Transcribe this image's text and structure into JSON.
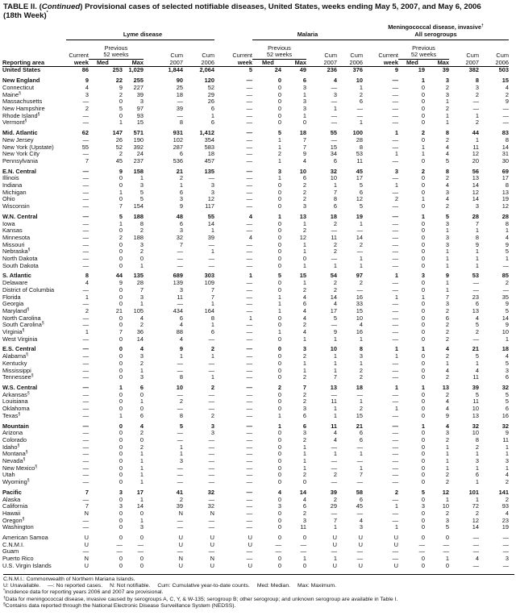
{
  "title": {
    "prefix": "TABLE II. (",
    "continued": "Continued",
    "text": ") Provisional cases of selected notifiable diseases, United States, weeks ending May 5, 2007, and May 6, 2006",
    "line2": "(18th Week)",
    "note": "*"
  },
  "headers": {
    "groups": [
      "Lyme disease",
      "Malaria"
    ],
    "men_line1": "Meningococcal disease, invasive",
    "men_note": "†",
    "men_line2": "All serogroups",
    "reporting_area": "Reporting area",
    "current": "Current",
    "week": "week",
    "previous": "Previous",
    "weeks52": "52 weeks",
    "med": "Med",
    "max": "Max",
    "cum": "Cum",
    "y2007": "2007",
    "y2006": "2006"
  },
  "rows": [
    {
      "name": "United States",
      "bold": true,
      "grp": false,
      "v": [
        "86",
        "253",
        "1,029",
        "1,844",
        "2,064",
        "5",
        "24",
        "49",
        "236",
        "376",
        "9",
        "19",
        "39",
        "382",
        "503"
      ]
    },
    {
      "name": "New England",
      "bold": true,
      "grp": true,
      "v": [
        "9",
        "22",
        "255",
        "90",
        "120",
        "—",
        "0",
        "6",
        "4",
        "10",
        "—",
        "1",
        "3",
        "8",
        "15"
      ]
    },
    {
      "name": "Connecticut",
      "v": [
        "4",
        "9",
        "227",
        "25",
        "52",
        "—",
        "0",
        "3",
        "—",
        "1",
        "—",
        "0",
        "2",
        "3",
        "4"
      ]
    },
    {
      "name": "Maine",
      "note": "§",
      "v": [
        "3",
        "2",
        "39",
        "18",
        "29",
        "—",
        "0",
        "1",
        "3",
        "2",
        "—",
        "0",
        "3",
        "2",
        "2"
      ]
    },
    {
      "name": "Massachusetts",
      "v": [
        "—",
        "0",
        "3",
        "—",
        "26",
        "—",
        "0",
        "3",
        "—",
        "6",
        "—",
        "0",
        "1",
        "—",
        "9"
      ]
    },
    {
      "name": "New Hampshire",
      "v": [
        "2",
        "5",
        "97",
        "39",
        "6",
        "—",
        "0",
        "3",
        "1",
        "—",
        "—",
        "0",
        "2",
        "—",
        "—"
      ]
    },
    {
      "name": "Rhode Island",
      "note": "§",
      "v": [
        "—",
        "0",
        "93",
        "—",
        "1",
        "—",
        "0",
        "1",
        "—",
        "—",
        "—",
        "0",
        "1",
        "1",
        "—"
      ]
    },
    {
      "name": "Vermont",
      "note": "§",
      "v": [
        "—",
        "1",
        "15",
        "8",
        "6",
        "—",
        "0",
        "0",
        "—",
        "1",
        "—",
        "0",
        "1",
        "2",
        "—"
      ]
    },
    {
      "name": "Mid. Atlantic",
      "bold": true,
      "grp": true,
      "v": [
        "62",
        "147",
        "571",
        "931",
        "1,412",
        "—",
        "5",
        "18",
        "55",
        "100",
        "1",
        "2",
        "8",
        "44",
        "83"
      ]
    },
    {
      "name": "New Jersey",
      "v": [
        "—",
        "26",
        "190",
        "102",
        "354",
        "—",
        "1",
        "7",
        "—",
        "28",
        "—",
        "0",
        "2",
        "1",
        "8"
      ]
    },
    {
      "name": "New York (Upstate)",
      "v": [
        "55",
        "52",
        "392",
        "287",
        "583",
        "—",
        "1",
        "7",
        "15",
        "8",
        "—",
        "1",
        "4",
        "11",
        "14"
      ]
    },
    {
      "name": "New York City",
      "v": [
        "—",
        "2",
        "24",
        "6",
        "18",
        "—",
        "2",
        "9",
        "34",
        "53",
        "1",
        "1",
        "4",
        "12",
        "31"
      ]
    },
    {
      "name": "Pennsylvania",
      "v": [
        "7",
        "45",
        "237",
        "536",
        "457",
        "—",
        "1",
        "4",
        "6",
        "11",
        "—",
        "0",
        "5",
        "20",
        "30"
      ]
    },
    {
      "name": "E.N. Central",
      "bold": true,
      "grp": true,
      "v": [
        "—",
        "9",
        "158",
        "21",
        "135",
        "—",
        "3",
        "10",
        "32",
        "45",
        "3",
        "2",
        "8",
        "56",
        "69"
      ]
    },
    {
      "name": "Illinois",
      "v": [
        "—",
        "0",
        "1",
        "2",
        "—",
        "—",
        "1",
        "6",
        "10",
        "17",
        "—",
        "0",
        "2",
        "13",
        "17"
      ]
    },
    {
      "name": "Indiana",
      "v": [
        "—",
        "0",
        "3",
        "1",
        "3",
        "—",
        "0",
        "2",
        "1",
        "5",
        "1",
        "0",
        "4",
        "14",
        "8"
      ]
    },
    {
      "name": "Michigan",
      "v": [
        "—",
        "1",
        "5",
        "6",
        "3",
        "—",
        "0",
        "2",
        "7",
        "6",
        "—",
        "0",
        "3",
        "12",
        "13"
      ]
    },
    {
      "name": "Ohio",
      "v": [
        "—",
        "0",
        "5",
        "3",
        "12",
        "—",
        "0",
        "2",
        "8",
        "12",
        "2",
        "1",
        "4",
        "14",
        "19"
      ]
    },
    {
      "name": "Wisconsin",
      "v": [
        "—",
        "7",
        "154",
        "9",
        "117",
        "—",
        "0",
        "3",
        "6",
        "5",
        "—",
        "0",
        "2",
        "3",
        "12"
      ]
    },
    {
      "name": "W.N. Central",
      "bold": true,
      "grp": true,
      "v": [
        "—",
        "5",
        "188",
        "48",
        "55",
        "4",
        "1",
        "13",
        "18",
        "19",
        "—",
        "1",
        "5",
        "28",
        "28"
      ]
    },
    {
      "name": "Iowa",
      "v": [
        "—",
        "1",
        "8",
        "6",
        "14",
        "—",
        "0",
        "1",
        "2",
        "1",
        "—",
        "0",
        "3",
        "7",
        "8"
      ]
    },
    {
      "name": "Kansas",
      "v": [
        "—",
        "0",
        "2",
        "3",
        "1",
        "—",
        "0",
        "2",
        "—",
        "—",
        "—",
        "0",
        "1",
        "1",
        "1"
      ]
    },
    {
      "name": "Minnesota",
      "v": [
        "—",
        "2",
        "188",
        "32",
        "39",
        "4",
        "0",
        "12",
        "11",
        "14",
        "—",
        "0",
        "3",
        "8",
        "4"
      ]
    },
    {
      "name": "Missouri",
      "v": [
        "—",
        "0",
        "3",
        "7",
        "—",
        "—",
        "0",
        "1",
        "2",
        "2",
        "—",
        "0",
        "3",
        "9",
        "9"
      ]
    },
    {
      "name": "Nebraska",
      "note": "§",
      "v": [
        "—",
        "0",
        "2",
        "—",
        "1",
        "—",
        "0",
        "1",
        "2",
        "—",
        "—",
        "0",
        "1",
        "1",
        "5"
      ]
    },
    {
      "name": "North Dakota",
      "v": [
        "—",
        "0",
        "0",
        "—",
        "—",
        "—",
        "0",
        "0",
        "—",
        "1",
        "—",
        "0",
        "1",
        "1",
        "1"
      ]
    },
    {
      "name": "South Dakota",
      "v": [
        "—",
        "0",
        "1",
        "—",
        "—",
        "—",
        "0",
        "1",
        "1",
        "1",
        "—",
        "0",
        "1",
        "1",
        "—"
      ]
    },
    {
      "name": "S. Atlantic",
      "bold": true,
      "grp": true,
      "v": [
        "8",
        "44",
        "135",
        "689",
        "303",
        "1",
        "5",
        "15",
        "54",
        "97",
        "1",
        "3",
        "9",
        "53",
        "85"
      ]
    },
    {
      "name": "Delaware",
      "v": [
        "4",
        "9",
        "28",
        "139",
        "109",
        "—",
        "0",
        "1",
        "2",
        "2",
        "—",
        "0",
        "1",
        "—",
        "2"
      ]
    },
    {
      "name": "District of Columbia",
      "v": [
        "—",
        "0",
        "7",
        "3",
        "7",
        "—",
        "0",
        "2",
        "2",
        "—",
        "—",
        "0",
        "1",
        "—",
        "—"
      ]
    },
    {
      "name": "Florida",
      "v": [
        "1",
        "0",
        "3",
        "11",
        "7",
        "—",
        "1",
        "4",
        "14",
        "16",
        "1",
        "1",
        "7",
        "23",
        "35"
      ]
    },
    {
      "name": "Georgia",
      "v": [
        "—",
        "0",
        "1",
        "—",
        "1",
        "—",
        "1",
        "6",
        "4",
        "33",
        "—",
        "0",
        "3",
        "6",
        "9"
      ]
    },
    {
      "name": "Maryland",
      "note": "§",
      "v": [
        "2",
        "21",
        "105",
        "434",
        "164",
        "—",
        "1",
        "4",
        "17",
        "15",
        "—",
        "0",
        "2",
        "13",
        "5"
      ]
    },
    {
      "name": "North Carolina",
      "v": [
        "—",
        "0",
        "4",
        "6",
        "8",
        "1",
        "0",
        "4",
        "5",
        "10",
        "—",
        "0",
        "6",
        "4",
        "14"
      ]
    },
    {
      "name": "South Carolina",
      "note": "§",
      "v": [
        "—",
        "0",
        "2",
        "4",
        "1",
        "—",
        "0",
        "2",
        "—",
        "4",
        "—",
        "0",
        "2",
        "5",
        "9"
      ]
    },
    {
      "name": "Virginia",
      "note": "§",
      "v": [
        "1",
        "7",
        "36",
        "88",
        "6",
        "—",
        "1",
        "4",
        "9",
        "16",
        "—",
        "0",
        "2",
        "2",
        "10"
      ]
    },
    {
      "name": "West Virginia",
      "v": [
        "—",
        "0",
        "14",
        "4",
        "—",
        "—",
        "0",
        "1",
        "1",
        "1",
        "—",
        "0",
        "2",
        "—",
        "1"
      ]
    },
    {
      "name": "E.S. Central",
      "bold": true,
      "grp": true,
      "v": [
        "—",
        "0",
        "4",
        "9",
        "2",
        "—",
        "0",
        "3",
        "10",
        "8",
        "1",
        "1",
        "4",
        "21",
        "18"
      ]
    },
    {
      "name": "Alabama",
      "note": "§",
      "v": [
        "—",
        "0",
        "3",
        "1",
        "1",
        "—",
        "0",
        "2",
        "1",
        "3",
        "1",
        "0",
        "2",
        "5",
        "4"
      ]
    },
    {
      "name": "Kentucky",
      "v": [
        "—",
        "0",
        "2",
        "—",
        "—",
        "—",
        "0",
        "1",
        "1",
        "1",
        "—",
        "0",
        "1",
        "1",
        "5"
      ]
    },
    {
      "name": "Mississippi",
      "v": [
        "—",
        "0",
        "1",
        "—",
        "—",
        "—",
        "0",
        "1",
        "1",
        "2",
        "—",
        "0",
        "4",
        "4",
        "3"
      ]
    },
    {
      "name": "Tennessee",
      "note": "§",
      "v": [
        "—",
        "0",
        "3",
        "8",
        "1",
        "—",
        "0",
        "2",
        "7",
        "2",
        "—",
        "0",
        "2",
        "11",
        "6"
      ]
    },
    {
      "name": "W.S. Central",
      "bold": true,
      "grp": true,
      "v": [
        "—",
        "1",
        "6",
        "10",
        "2",
        "—",
        "2",
        "7",
        "13",
        "18",
        "1",
        "1",
        "13",
        "39",
        "32"
      ]
    },
    {
      "name": "Arkansas",
      "note": "§",
      "v": [
        "—",
        "0",
        "0",
        "—",
        "—",
        "—",
        "0",
        "2",
        "—",
        "—",
        "—",
        "0",
        "2",
        "5",
        "5"
      ]
    },
    {
      "name": "Louisiana",
      "v": [
        "—",
        "0",
        "1",
        "2",
        "—",
        "—",
        "0",
        "2",
        "11",
        "1",
        "—",
        "0",
        "4",
        "11",
        "5"
      ]
    },
    {
      "name": "Oklahoma",
      "v": [
        "—",
        "0",
        "0",
        "—",
        "—",
        "—",
        "0",
        "3",
        "1",
        "2",
        "1",
        "0",
        "4",
        "10",
        "6"
      ]
    },
    {
      "name": "Texas",
      "note": "§",
      "v": [
        "—",
        "1",
        "6",
        "8",
        "2",
        "—",
        "1",
        "6",
        "1",
        "15",
        "—",
        "0",
        "9",
        "13",
        "16"
      ]
    },
    {
      "name": "Mountain",
      "bold": true,
      "grp": true,
      "v": [
        "—",
        "0",
        "4",
        "5",
        "3",
        "—",
        "1",
        "6",
        "11",
        "21",
        "—",
        "1",
        "4",
        "32",
        "32"
      ]
    },
    {
      "name": "Arizona",
      "v": [
        "—",
        "0",
        "2",
        "—",
        "3",
        "—",
        "0",
        "3",
        "4",
        "6",
        "—",
        "0",
        "3",
        "10",
        "9"
      ]
    },
    {
      "name": "Colorado",
      "v": [
        "—",
        "0",
        "0",
        "—",
        "—",
        "—",
        "0",
        "2",
        "4",
        "6",
        "—",
        "0",
        "2",
        "8",
        "11"
      ]
    },
    {
      "name": "Idaho",
      "note": "§",
      "v": [
        "—",
        "0",
        "2",
        "1",
        "—",
        "—",
        "0",
        "1",
        "—",
        "—",
        "—",
        "0",
        "1",
        "2",
        "1"
      ]
    },
    {
      "name": "Montana",
      "note": "§",
      "v": [
        "—",
        "0",
        "1",
        "1",
        "—",
        "—",
        "0",
        "1",
        "1",
        "1",
        "—",
        "0",
        "1",
        "1",
        "1"
      ]
    },
    {
      "name": "Nevada",
      "note": "§",
      "v": [
        "—",
        "0",
        "1",
        "3",
        "—",
        "—",
        "0",
        "1",
        "—",
        "—",
        "—",
        "0",
        "1",
        "3",
        "3"
      ]
    },
    {
      "name": "New Mexico",
      "note": "§",
      "v": [
        "—",
        "0",
        "1",
        "—",
        "—",
        "—",
        "0",
        "1",
        "—",
        "1",
        "—",
        "0",
        "1",
        "1",
        "1"
      ]
    },
    {
      "name": "Utah",
      "v": [
        "—",
        "0",
        "1",
        "—",
        "—",
        "—",
        "0",
        "2",
        "2",
        "7",
        "—",
        "0",
        "2",
        "6",
        "4"
      ]
    },
    {
      "name": "Wyoming",
      "note": "§",
      "v": [
        "—",
        "0",
        "1",
        "—",
        "—",
        "—",
        "0",
        "0",
        "—",
        "—",
        "—",
        "0",
        "2",
        "1",
        "2"
      ]
    },
    {
      "name": "Pacific",
      "bold": true,
      "grp": true,
      "v": [
        "7",
        "3",
        "17",
        "41",
        "32",
        "—",
        "4",
        "14",
        "39",
        "58",
        "2",
        "5",
        "12",
        "101",
        "141"
      ]
    },
    {
      "name": "Alaska",
      "v": [
        "—",
        "0",
        "1",
        "2",
        "—",
        "—",
        "0",
        "4",
        "2",
        "6",
        "—",
        "0",
        "1",
        "1",
        "2"
      ]
    },
    {
      "name": "California",
      "v": [
        "7",
        "3",
        "14",
        "39",
        "32",
        "—",
        "3",
        "6",
        "29",
        "45",
        "1",
        "3",
        "10",
        "72",
        "93"
      ]
    },
    {
      "name": "Hawaii",
      "v": [
        "N",
        "0",
        "0",
        "N",
        "N",
        "—",
        "0",
        "2",
        "—",
        "—",
        "—",
        "0",
        "2",
        "2",
        "4"
      ]
    },
    {
      "name": "Oregon",
      "note": "§",
      "v": [
        "—",
        "0",
        "1",
        "—",
        "—",
        "—",
        "0",
        "3",
        "7",
        "4",
        "—",
        "0",
        "3",
        "12",
        "23"
      ]
    },
    {
      "name": "Washington",
      "v": [
        "—",
        "0",
        "3",
        "—",
        "—",
        "—",
        "0",
        "11",
        "1",
        "3",
        "1",
        "0",
        "5",
        "14",
        "19"
      ]
    },
    {
      "name": "American Samoa",
      "grp": true,
      "v": [
        "U",
        "0",
        "0",
        "U",
        "U",
        "U",
        "0",
        "0",
        "U",
        "U",
        "U",
        "0",
        "0",
        "—",
        "—"
      ]
    },
    {
      "name": "C.N.M.I.",
      "v": [
        "U",
        "—",
        "—",
        "U",
        "U",
        "U",
        "—",
        "—",
        "U",
        "U",
        "U",
        "—",
        "—",
        "—",
        "—"
      ]
    },
    {
      "name": "Guam",
      "v": [
        "—",
        "—",
        "—",
        "—",
        "—",
        "—",
        "—",
        "—",
        "—",
        "—",
        "—",
        "—",
        "—",
        "—",
        "—"
      ]
    },
    {
      "name": "Puerto Rico",
      "v": [
        "N",
        "0",
        "0",
        "N",
        "N",
        "—",
        "0",
        "1",
        "1",
        "—",
        "—",
        "0",
        "1",
        "4",
        "3"
      ]
    },
    {
      "name": "U.S. Virgin Islands",
      "v": [
        "U",
        "0",
        "0",
        "U",
        "U",
        "U",
        "0",
        "0",
        "U",
        "U",
        "U",
        "0",
        "0",
        "—",
        "—"
      ]
    }
  ],
  "footnotes": {
    "cnmi": "C.N.M.I.: Commonwealth of Northern Mariana Islands.",
    "legend": [
      "U: Unavailable.",
      "—: No reported cases.",
      "N: Not notifiable.",
      "Cum: Cumulative year-to-date counts.",
      "Med: Median.",
      "Max: Maximum."
    ],
    "star_mark": "*",
    "star": "Incidence data for reporting years 2006 and 2007 are provisional.",
    "dagger_mark": "†",
    "dagger": "Data for meningococcal disease, invasive caused by serogroups A, C, Y, & W-135; serogroup B; other serogroup; and unknown serogroup are available in Table I.",
    "section_mark": "§",
    "section": "Contains data reported through the National Electronic Disease Surveillance System (NEDSS)."
  }
}
